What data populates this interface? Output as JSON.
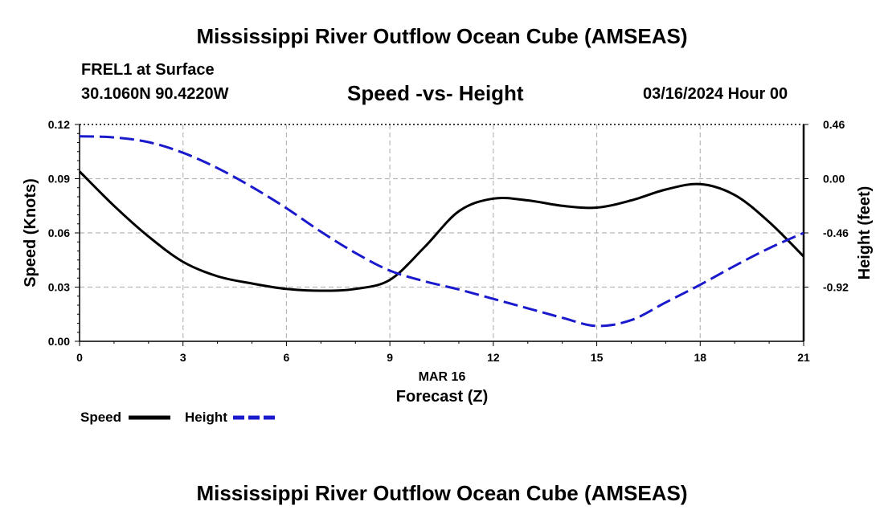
{
  "header": {
    "title": "Mississippi River Outflow Ocean Cube (AMSEAS)",
    "station": "FREL1 at Surface",
    "coords": "30.1060N  90.4220W",
    "subtitle": "Speed -vs- Height",
    "datetime": "03/16/2024 Hour 00",
    "footer_title": "Mississippi River Outflow Ocean Cube (AMSEAS)"
  },
  "chart_data": {
    "type": "line",
    "title": "Speed -vs- Height",
    "xlabel": "Forecast (Z)",
    "xdate": "MAR 16",
    "ylabel": "Speed (Knots)",
    "y2label": "Height (feet)",
    "x_ticks": [
      0,
      3,
      6,
      9,
      12,
      15,
      18,
      21
    ],
    "xlim": [
      0,
      21
    ],
    "ylim": [
      0,
      0.12
    ],
    "y_ticks": [
      "0.00",
      "0.03",
      "0.06",
      "0.09",
      "0.12"
    ],
    "y_tick_values": [
      0,
      0.03,
      0.06,
      0.09,
      0.12
    ],
    "y2lim": [
      -1.38,
      0.46
    ],
    "y2_ticks": [
      "-0.92",
      "-0.46",
      "0.00",
      "0.46"
    ],
    "y2_tick_values": [
      -0.92,
      -0.46,
      0.0,
      0.46
    ],
    "grid": true,
    "series": [
      {
        "name": "Speed",
        "axis": "left",
        "color": "#000000",
        "style": "solid",
        "x": [
          0,
          1,
          2,
          3,
          4,
          5,
          6,
          7,
          8,
          9,
          10,
          11,
          12,
          13,
          14,
          15,
          16,
          17,
          18,
          19,
          20,
          21
        ],
        "values": [
          0.094,
          0.075,
          0.058,
          0.044,
          0.036,
          0.032,
          0.029,
          0.028,
          0.029,
          0.034,
          0.052,
          0.072,
          0.079,
          0.078,
          0.075,
          0.074,
          0.078,
          0.084,
          0.087,
          0.081,
          0.066,
          0.047
        ]
      },
      {
        "name": "Height",
        "axis": "right",
        "color": "#1a1acc",
        "style": "dashed",
        "x": [
          0,
          1,
          2,
          3,
          4,
          5,
          6,
          7,
          8,
          9,
          10,
          11,
          12,
          13,
          14,
          15,
          16,
          17,
          18,
          19,
          20,
          21
        ],
        "values": [
          0.36,
          0.35,
          0.31,
          0.22,
          0.09,
          -0.07,
          -0.25,
          -0.45,
          -0.63,
          -0.78,
          -0.87,
          -0.94,
          -1.02,
          -1.1,
          -1.18,
          -1.25,
          -1.2,
          -1.05,
          -0.9,
          -0.74,
          -0.59,
          -0.46
        ]
      }
    ],
    "legend": [
      {
        "name": "Speed",
        "color": "#000000",
        "style": "solid"
      },
      {
        "name": "Height",
        "color": "#1a1acc",
        "style": "dashed"
      }
    ]
  }
}
